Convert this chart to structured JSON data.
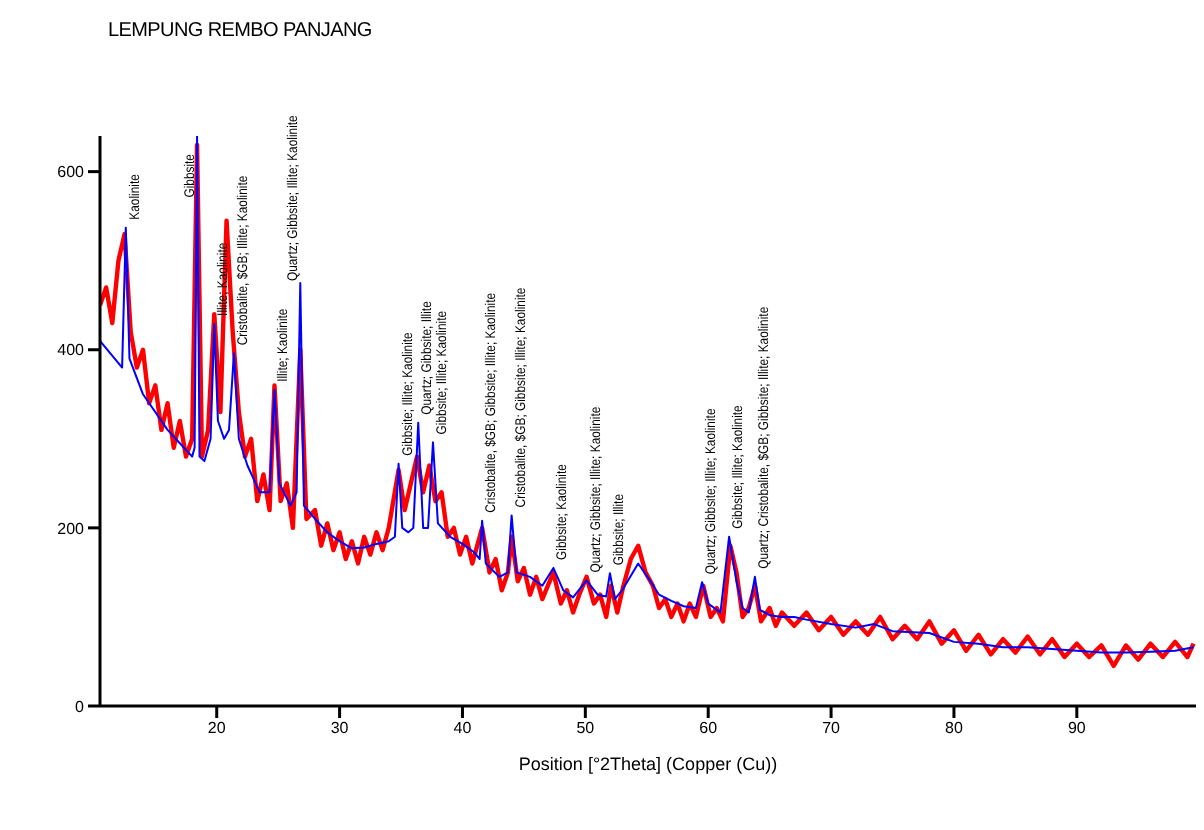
{
  "chart_data": {
    "type": "line",
    "title": "LEMPUNG REMBO PANJANG",
    "xlabel": "Position [°2Theta] (Copper (Cu))",
    "xlim": [
      10.5,
      99.7
    ],
    "xticks": [
      20,
      30,
      40,
      50,
      60,
      70,
      80,
      90
    ],
    "ylim": [
      0,
      640
    ],
    "yticks": [
      0,
      200,
      400,
      600
    ],
    "grid": false,
    "legend": false,
    "marker": "none",
    "line_style": "solid",
    "series": [
      {
        "color": "#ff0000",
        "x": [
          10.5,
          11,
          11.5,
          12,
          12.5,
          13,
          13.5,
          14,
          14.5,
          15,
          15.5,
          16,
          16.5,
          17,
          17.5,
          18,
          18.4,
          18.8,
          19.3,
          19.8,
          20.3,
          20.8,
          21.3,
          21.8,
          22.3,
          22.8,
          23.3,
          23.8,
          24.3,
          24.7,
          25.2,
          25.7,
          26.2,
          26.8,
          27.3,
          28,
          28.5,
          29,
          29.5,
          30,
          30.5,
          31,
          31.5,
          32,
          32.5,
          33,
          33.5,
          34,
          34.8,
          35.3,
          35.8,
          36.3,
          36.8,
          37.3,
          37.8,
          38.3,
          38.8,
          39.3,
          39.8,
          40.3,
          40.8,
          41.6,
          42.2,
          42.7,
          43.2,
          43.7,
          44.0,
          44.5,
          45,
          45.5,
          46,
          46.5,
          47.4,
          48,
          48.5,
          49,
          49.5,
          50.1,
          50.7,
          51.2,
          51.7,
          52.1,
          52.6,
          53.1,
          53.7,
          54.3,
          54.9,
          55.5,
          56,
          56.5,
          57,
          57.5,
          58,
          58.5,
          59,
          59.6,
          60.2,
          60.7,
          61.2,
          61.8,
          62.3,
          62.8,
          63.3,
          63.8,
          64.3,
          65,
          65.5,
          66,
          67,
          68,
          69,
          70,
          71,
          72,
          73,
          74,
          75,
          76,
          77,
          78,
          79,
          80,
          81,
          82,
          83,
          84,
          85,
          86,
          87,
          88,
          89,
          90,
          91,
          92,
          93,
          94,
          95,
          96,
          97,
          98,
          99,
          99.5
        ],
        "values": [
          450,
          470,
          430,
          500,
          530,
          420,
          380,
          400,
          340,
          360,
          310,
          340,
          290,
          320,
          280,
          300,
          630,
          280,
          310,
          440,
          330,
          545,
          420,
          330,
          280,
          300,
          230,
          260,
          220,
          360,
          230,
          250,
          200,
          400,
          210,
          220,
          180,
          205,
          175,
          195,
          165,
          185,
          160,
          190,
          170,
          195,
          175,
          200,
          265,
          220,
          250,
          280,
          240,
          270,
          230,
          240,
          190,
          200,
          170,
          190,
          160,
          200,
          150,
          165,
          130,
          150,
          190,
          140,
          155,
          125,
          145,
          120,
          150,
          115,
          130,
          105,
          125,
          145,
          115,
          125,
          100,
          135,
          105,
          135,
          165,
          180,
          150,
          135,
          110,
          120,
          100,
          115,
          95,
          115,
          100,
          135,
          100,
          110,
          95,
          180,
          150,
          100,
          110,
          135,
          95,
          110,
          90,
          105,
          90,
          105,
          85,
          100,
          80,
          95,
          80,
          100,
          75,
          90,
          75,
          95,
          70,
          85,
          62,
          80,
          58,
          75,
          60,
          78,
          58,
          75,
          55,
          70,
          55,
          68,
          45,
          68,
          52,
          70,
          55,
          72,
          55,
          70
        ]
      },
      {
        "color": "#0000ff",
        "x": [
          10.5,
          12,
          12.3,
          12.6,
          12.9,
          14,
          16,
          17,
          18,
          18.2,
          18.4,
          18.6,
          19,
          19.5,
          19.8,
          20.1,
          20.6,
          21.0,
          21.4,
          21.8,
          22.5,
          23.5,
          24.3,
          24.7,
          25.1,
          26,
          26.5,
          26.8,
          27.1,
          28,
          29,
          30,
          31,
          32,
          33,
          34,
          34.5,
          34.8,
          35.1,
          35.6,
          36.0,
          36.4,
          36.8,
          37.2,
          37.6,
          38,
          39,
          40,
          41,
          41.4,
          41.6,
          41.9,
          43,
          43.7,
          44.0,
          44.4,
          45.5,
          46.5,
          47.4,
          48.2,
          49,
          50.1,
          51,
          51.7,
          52.0,
          52.4,
          53,
          54.3,
          55.3,
          56,
          57,
          58,
          59,
          59.5,
          60,
          61,
          61.7,
          62.3,
          62.8,
          63.3,
          63.8,
          64.2,
          65,
          66,
          67,
          68,
          70,
          72,
          73.5,
          75,
          78,
          80,
          82,
          84,
          86,
          88,
          90,
          92,
          94,
          96,
          98,
          99.5
        ],
        "values": [
          410,
          385,
          380,
          537,
          390,
          350,
          310,
          295,
          280,
          290,
          640,
          280,
          275,
          300,
          429,
          320,
          300,
          310,
          396,
          300,
          270,
          240,
          240,
          355,
          250,
          225,
          240,
          475,
          225,
          210,
          195,
          185,
          177,
          178,
          182,
          185,
          190,
          272,
          200,
          195,
          200,
          318,
          200,
          200,
          296,
          205,
          190,
          182,
          172,
          165,
          208,
          160,
          145,
          150,
          214,
          150,
          145,
          135,
          155,
          130,
          122,
          141,
          125,
          123,
          149,
          120,
          130,
          160,
          140,
          125,
          118,
          112,
          110,
          139,
          115,
          105,
          190,
          140,
          110,
          105,
          145,
          108,
          102,
          100,
          100,
          97,
          92,
          88,
          92,
          84,
          82,
          72,
          70,
          66,
          66,
          64,
          62,
          60,
          60,
          61,
          62,
          66
        ]
      }
    ],
    "annotations": [
      {
        "text": "Kaolinite",
        "x": 12.6,
        "y": 537
      },
      {
        "text": "Gibbsite",
        "x": 18.4,
        "y": 640
      },
      {
        "text": "Illite; Kaolinite",
        "x": 19.8,
        "y": 429
      },
      {
        "text": "Cristobalite, $GB; Illite; Kaolinite",
        "x": 21.4,
        "y": 396
      },
      {
        "text": "Illite; Kaolinite",
        "x": 24.7,
        "y": 355
      },
      {
        "text": "Quartz; Gibbsite; Illite; Kaolinite",
        "x": 26.8,
        "y": 475
      },
      {
        "text": "Gibbsite; Illite; Kaolinite",
        "x": 34.8,
        "y": 272
      },
      {
        "text": "Quartz; Gibbsite; Illite",
        "x": 36.4,
        "y": 318
      },
      {
        "text": "Gibbsite; Illite; Kaolinite",
        "x": 37.6,
        "y": 296
      },
      {
        "text": "Cristobalite, $GB; Gibbsite; Illite; Kaolinite",
        "x": 41.6,
        "y": 208
      },
      {
        "text": "Cristobalite, $GB; Gibbsite; Illite; Kaolinite",
        "x": 44.0,
        "y": 214
      },
      {
        "text": "Gibbsite; Kaolinite",
        "x": 47.4,
        "y": 155
      },
      {
        "text": "Quartz; Gibbsite; Illite; Kaolinite",
        "x": 50.1,
        "y": 141
      },
      {
        "text": "Gibbsite; Illite",
        "x": 52.0,
        "y": 149
      },
      {
        "text": "Quartz; Gibbsite; Illite; Kaolinite",
        "x": 59.5,
        "y": 139
      },
      {
        "text": "Gibbsite; Illite; Kaolinite",
        "x": 61.7,
        "y": 190
      },
      {
        "text": "Quartz; Cristobalite, $GB; Gibbsite; Illite; Kaolinite",
        "x": 63.8,
        "y": 145
      }
    ]
  }
}
